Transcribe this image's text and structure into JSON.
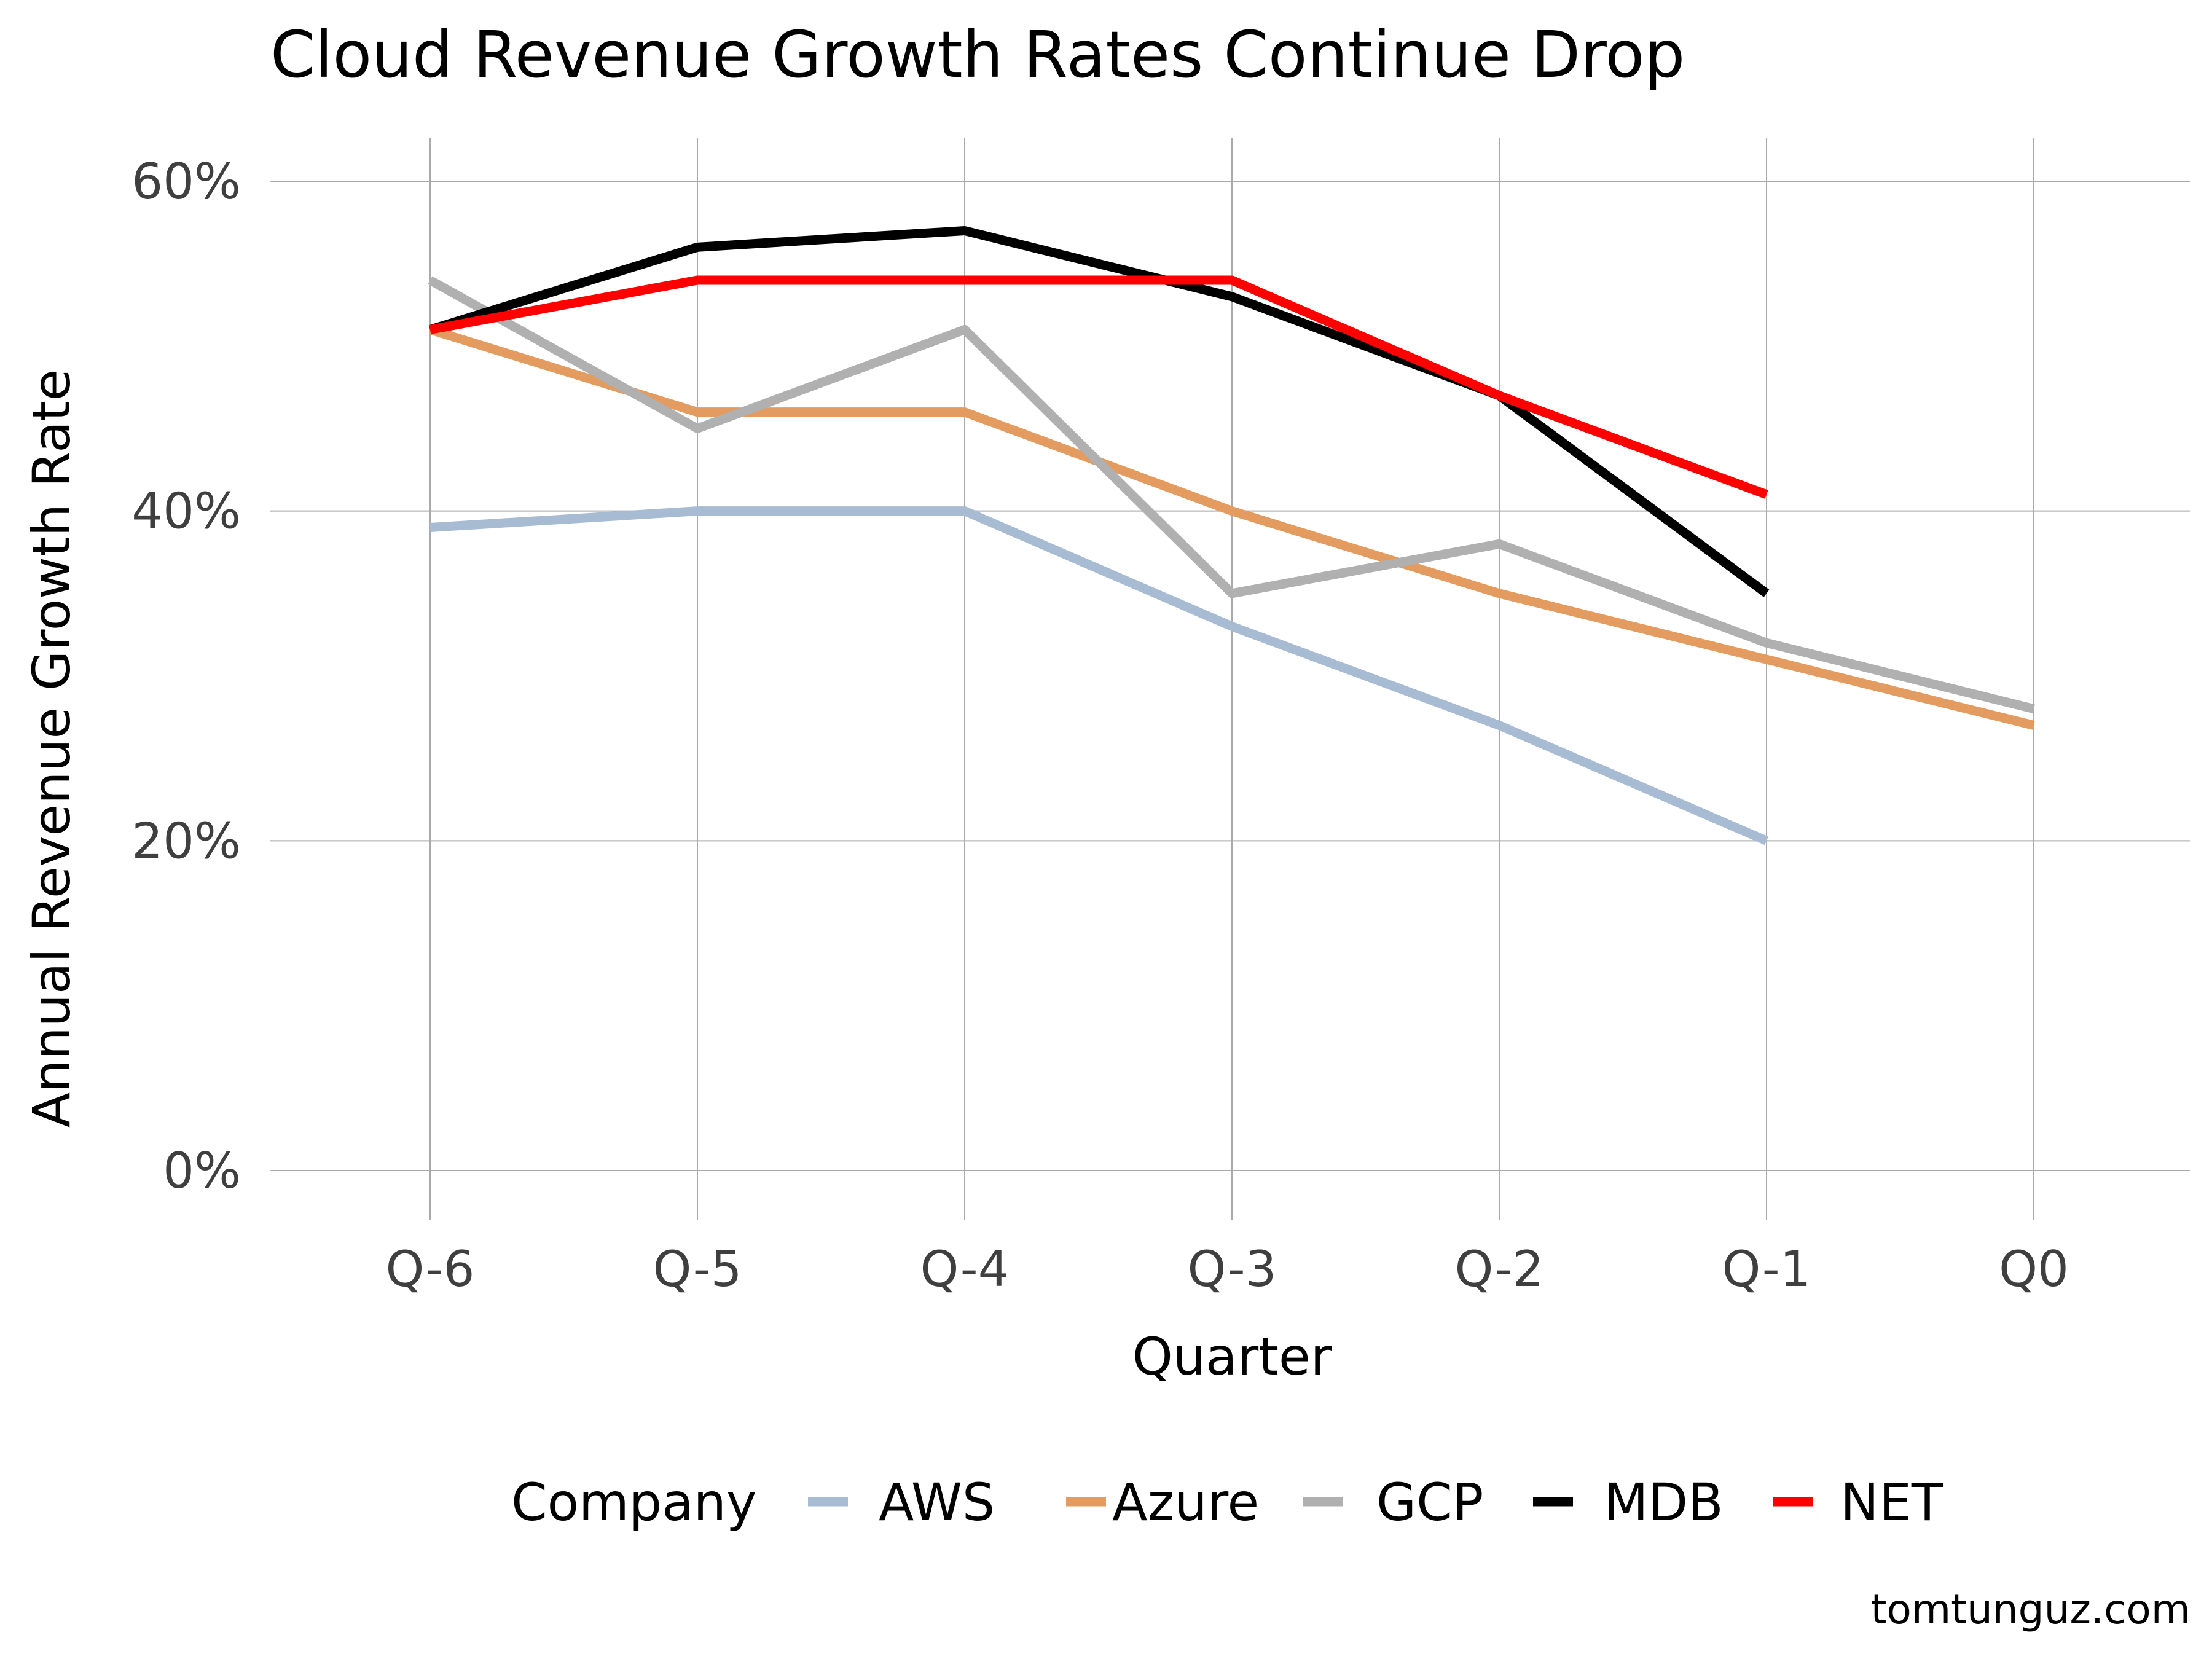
{
  "chart_data": {
    "type": "line",
    "title": "Cloud Revenue Growth Rates Continue Drop",
    "xlabel": "Quarter",
    "ylabel": "Annual Revenue Growth Rate",
    "categories": [
      "Q-6",
      "Q-5",
      "Q-4",
      "Q-3",
      "Q-2",
      "Q-1",
      "Q0"
    ],
    "y_ticks": [
      0,
      20,
      40,
      60
    ],
    "y_tick_labels": [
      "0%",
      "20%",
      "40%",
      "60%"
    ],
    "ylim": [
      0,
      60
    ],
    "grid": true,
    "legend_title": "Company",
    "legend_position": "bottom",
    "caption": "tomtunguz.com",
    "series": [
      {
        "name": "AWS",
        "color": "#a7bbd3",
        "values": [
          39,
          40,
          40,
          33,
          27,
          20,
          null
        ]
      },
      {
        "name": "Azure",
        "color": "#e49b5f",
        "values": [
          51,
          46,
          46,
          40,
          35,
          31,
          27
        ]
      },
      {
        "name": "GCP",
        "color": "#b0b0b0",
        "values": [
          54,
          45,
          51,
          35,
          38,
          32,
          28
        ]
      },
      {
        "name": "MDB",
        "color": "#000000",
        "values": [
          51,
          56,
          57,
          53,
          47,
          35,
          null
        ]
      },
      {
        "name": "NET",
        "color": "#ff0000",
        "values": [
          51,
          54,
          54,
          54,
          47,
          41,
          null
        ]
      }
    ]
  }
}
